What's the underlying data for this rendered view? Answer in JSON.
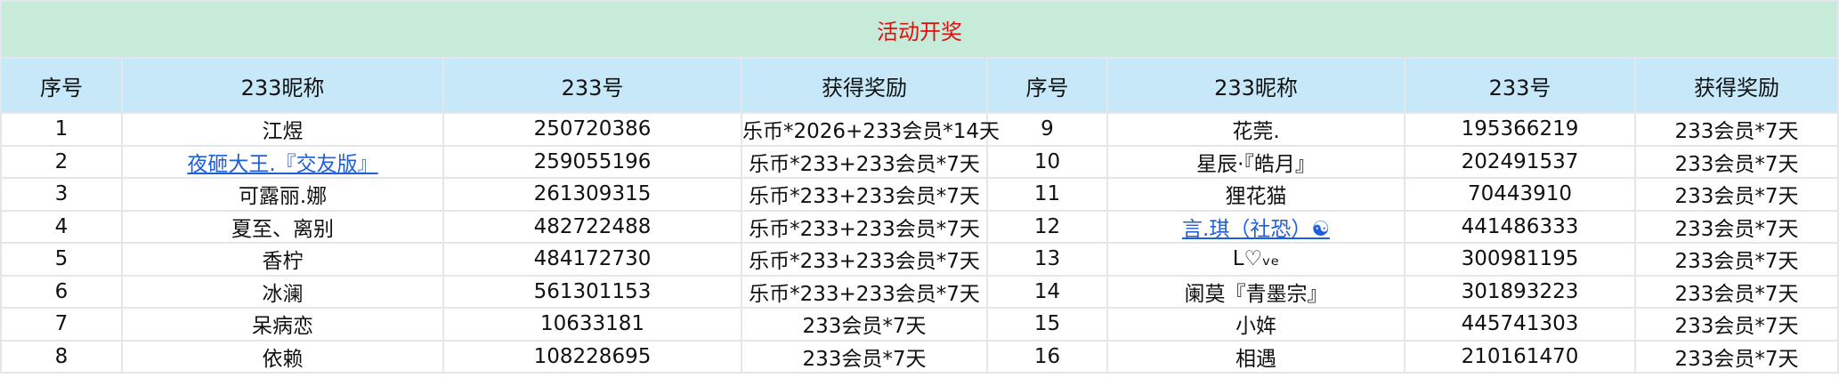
{
  "title": "活动开奖",
  "colors": {
    "title_bg": "#c6ebd9",
    "title_text": "#e01010",
    "header_bg": "#c7e8f8",
    "link": "#1f5fd6"
  },
  "headers": [
    "序号",
    "233昵称",
    "233号",
    "获得奖励",
    "序号",
    "233昵称",
    "233号",
    "获得奖励"
  ],
  "left": [
    {
      "no": "1",
      "nick": "江煜",
      "id": "250720386",
      "prize": "乐币*2026+233会员*14天",
      "link": false
    },
    {
      "no": "2",
      "nick": "夜砸大王.『交友版』",
      "id": "259055196",
      "prize": "乐币*233+233会员*7天",
      "link": true
    },
    {
      "no": "3",
      "nick": "可露丽.娜",
      "id": "261309315",
      "prize": "乐币*233+233会员*7天",
      "link": false
    },
    {
      "no": "4",
      "nick": "夏至、离别",
      "id": "482722488",
      "prize": "乐币*233+233会员*7天",
      "link": false
    },
    {
      "no": "5",
      "nick": "香柠",
      "id": "484172730",
      "prize": "乐币*233+233会员*7天",
      "link": false
    },
    {
      "no": "6",
      "nick": "冰澜",
      "id": "561301153",
      "prize": "乐币*233+233会员*7天",
      "link": false
    },
    {
      "no": "7",
      "nick": "呆病恋",
      "id": "10633181",
      "prize": "233会员*7天",
      "link": false
    },
    {
      "no": "8",
      "nick": "依赖",
      "id": "108228695",
      "prize": "233会员*7天",
      "link": false
    }
  ],
  "right": [
    {
      "no": "9",
      "nick": "花莞.",
      "id": "195366219",
      "prize": "233会员*7天",
      "link": false
    },
    {
      "no": "10",
      "nick": "星辰·『皓月』",
      "id": "202491537",
      "prize": "233会员*7天",
      "link": false
    },
    {
      "no": "11",
      "nick": "狸花猫",
      "id": "70443910",
      "prize": "233会员*7天",
      "link": false
    },
    {
      "no": "12",
      "nick": "言.琪（社恐）☯",
      "id": "441486333",
      "prize": "233会员*7天",
      "link": true
    },
    {
      "no": "13",
      "nick": "L♡ᵥₑ",
      "id": "300981195",
      "prize": "233会员*7天",
      "link": false
    },
    {
      "no": "14",
      "nick": "阑莫『青墨宗』",
      "id": "301893223",
      "prize": "233会员*7天",
      "link": false
    },
    {
      "no": "15",
      "nick": "小姩",
      "id": "445741303",
      "prize": "233会员*7天",
      "link": false
    },
    {
      "no": "16",
      "nick": "相遇",
      "id": "210161470",
      "prize": "233会员*7天",
      "link": false
    }
  ]
}
